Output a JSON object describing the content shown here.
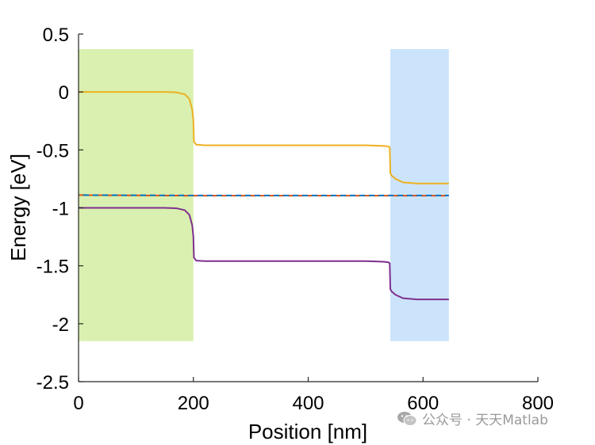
{
  "chart_data": {
    "type": "line",
    "title": "",
    "xlabel": "Position [nm]",
    "ylabel": "Energy [eV]",
    "xlim": [
      0,
      800
    ],
    "ylim": [
      -2.5,
      0.5
    ],
    "xticks": [
      0,
      200,
      400,
      600,
      800
    ],
    "yticks": [
      0.5,
      0,
      -0.5,
      -1,
      -1.5,
      -2,
      -2.5
    ],
    "xtick_labels": [
      "0",
      "200",
      "400",
      "600",
      "800"
    ],
    "ytick_labels": [
      "0.5",
      "0",
      "-0.5",
      "-1",
      "-1.5",
      "-2",
      "-2.5"
    ],
    "grid": false,
    "legend": "none",
    "regions": [
      {
        "x_start": 0,
        "x_end": 200,
        "y_start": -2.15,
        "y_end": 0.37,
        "color": "#d9f0b0"
      },
      {
        "x_start": 543,
        "x_end": 645,
        "y_start": -2.15,
        "y_end": 0.37,
        "color": "#cce4fb"
      }
    ],
    "series": [
      {
        "color": "#edb120",
        "style": "solid",
        "x": [
          0,
          150,
          170,
          185,
          193,
          198,
          200,
          201,
          205,
          220,
          300,
          400,
          500,
          530,
          540,
          542,
          543,
          545,
          552,
          565,
          590,
          620,
          645
        ],
        "y": [
          0,
          0,
          -0.003,
          -0.02,
          -0.06,
          -0.15,
          -0.25,
          -0.43,
          -0.455,
          -0.46,
          -0.46,
          -0.46,
          -0.46,
          -0.465,
          -0.47,
          -0.48,
          -0.7,
          -0.72,
          -0.75,
          -0.78,
          -0.79,
          -0.79,
          -0.79
        ]
      },
      {
        "color": "#7e2f8e",
        "style": "solid",
        "x": [
          0,
          150,
          170,
          185,
          193,
          198,
          200,
          201,
          205,
          220,
          300,
          400,
          500,
          530,
          540,
          542,
          543,
          545,
          552,
          565,
          590,
          620,
          645
        ],
        "y": [
          -1,
          -1,
          -1.003,
          -1.02,
          -1.06,
          -1.15,
          -1.25,
          -1.43,
          -1.455,
          -1.46,
          -1.46,
          -1.46,
          -1.46,
          -1.465,
          -1.47,
          -1.48,
          -1.7,
          -1.72,
          -1.75,
          -1.78,
          -1.79,
          -1.79,
          -1.79
        ]
      },
      {
        "color": "#d95319",
        "style": "dashed",
        "x": [
          0,
          200,
          400,
          645
        ],
        "y": [
          -0.89,
          -0.895,
          -0.895,
          -0.895
        ]
      },
      {
        "color": "#0072bd",
        "style": "dashed",
        "x": [
          0,
          200,
          400,
          645
        ],
        "y": [
          -0.89,
          -0.893,
          -0.893,
          -0.893
        ]
      }
    ]
  },
  "watermark": {
    "text": "公众号 · 天天Matlab",
    "icon": "wechat-icon",
    "color": "#9a9a9a"
  }
}
